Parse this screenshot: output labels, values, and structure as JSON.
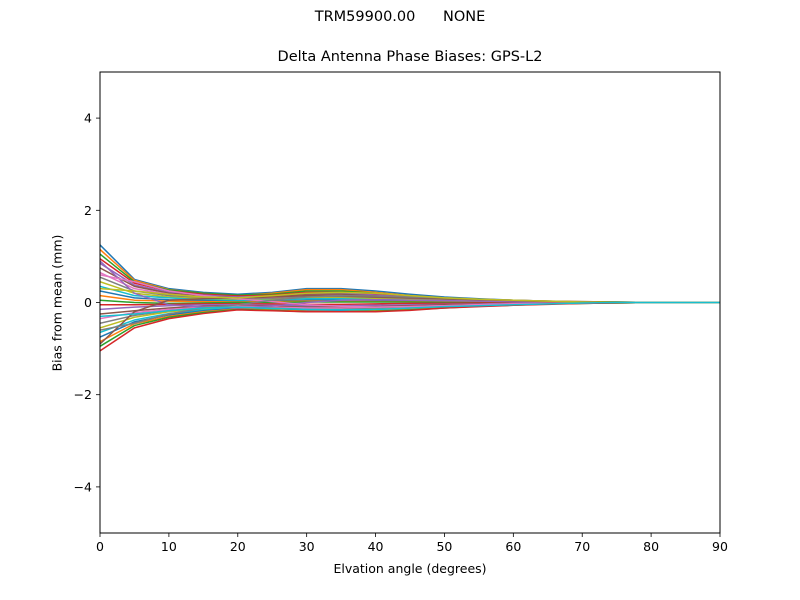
{
  "figure": {
    "suptitle": "TRM59900.00      NONE"
  },
  "chart_data": {
    "type": "line",
    "title": "Delta Antenna Phase Biases: GPS-L2",
    "xlabel": "Elvation angle (degrees)",
    "ylabel": "Bias from mean (mm)",
    "xlim": [
      0,
      90
    ],
    "ylim": [
      -5,
      5
    ],
    "xticks": [
      0,
      10,
      20,
      30,
      40,
      50,
      60,
      70,
      80,
      90
    ],
    "yticks": [
      -4,
      -2,
      0,
      2,
      4
    ],
    "ytick_labels": [
      "−4",
      "−2",
      "0",
      "2",
      "4"
    ],
    "grid": false,
    "legend": "none",
    "x": [
      0,
      5,
      10,
      15,
      20,
      25,
      30,
      35,
      40,
      45,
      50,
      55,
      60,
      65,
      70,
      75,
      80,
      85,
      90
    ],
    "series_colors": [
      "#1f77b4",
      "#ff7f0e",
      "#2ca02c",
      "#d62728",
      "#9467bd",
      "#8c564b",
      "#e377c2",
      "#7f7f7f",
      "#bcbd22",
      "#17becf"
    ],
    "series": [
      {
        "values": [
          1.25,
          0.5,
          0.3,
          0.22,
          0.18,
          0.22,
          0.3,
          0.3,
          0.25,
          0.18,
          0.12,
          0.08,
          0.05,
          0.03,
          0.02,
          0.01,
          0.0,
          0.0,
          0.0
        ]
      },
      {
        "values": [
          1.15,
          0.48,
          0.28,
          0.2,
          0.15,
          0.2,
          0.28,
          0.28,
          0.22,
          0.15,
          0.1,
          0.07,
          0.05,
          0.03,
          0.02,
          0.01,
          0.0,
          0.0,
          0.0
        ]
      },
      {
        "values": [
          1.05,
          0.45,
          0.27,
          0.2,
          0.16,
          0.18,
          0.25,
          0.25,
          0.2,
          0.14,
          0.1,
          0.07,
          0.04,
          0.02,
          0.01,
          0.01,
          0.0,
          0.0,
          0.0
        ]
      },
      {
        "values": [
          0.95,
          0.42,
          0.25,
          0.18,
          0.14,
          0.16,
          0.22,
          0.22,
          0.18,
          0.13,
          0.09,
          0.06,
          0.04,
          0.02,
          0.01,
          0.0,
          0.0,
          0.0,
          0.0
        ]
      },
      {
        "values": [
          0.85,
          0.38,
          0.22,
          0.16,
          0.12,
          0.14,
          0.2,
          0.2,
          0.16,
          0.12,
          0.08,
          0.06,
          0.04,
          0.02,
          0.01,
          0.0,
          0.0,
          0.0,
          0.0
        ]
      },
      {
        "values": [
          0.75,
          0.35,
          0.2,
          0.14,
          0.1,
          0.12,
          0.17,
          0.18,
          0.14,
          0.1,
          0.07,
          0.05,
          0.03,
          0.02,
          0.01,
          0.0,
          0.0,
          0.0,
          0.0
        ]
      },
      {
        "values": [
          0.65,
          0.3,
          0.18,
          0.12,
          0.09,
          0.1,
          0.15,
          0.15,
          0.12,
          0.09,
          0.06,
          0.04,
          0.03,
          0.02,
          0.01,
          0.0,
          0.0,
          0.0,
          0.0
        ]
      },
      {
        "values": [
          0.55,
          0.25,
          0.15,
          0.1,
          0.07,
          0.08,
          0.12,
          0.12,
          0.1,
          0.07,
          0.05,
          0.04,
          0.02,
          0.01,
          0.01,
          0.0,
          0.0,
          0.0,
          0.0
        ]
      },
      {
        "values": [
          0.45,
          0.2,
          0.12,
          0.08,
          0.05,
          0.06,
          0.1,
          0.1,
          0.08,
          0.06,
          0.04,
          0.03,
          0.02,
          0.01,
          0.0,
          0.0,
          0.0,
          0.0,
          0.0
        ]
      },
      {
        "values": [
          0.35,
          0.15,
          0.1,
          0.06,
          0.04,
          0.05,
          0.08,
          0.08,
          0.06,
          0.05,
          0.03,
          0.02,
          0.02,
          0.01,
          0.0,
          0.0,
          0.0,
          0.0,
          0.0
        ]
      },
      {
        "values": [
          0.25,
          0.1,
          0.06,
          0.04,
          0.02,
          0.03,
          0.05,
          0.05,
          0.04,
          0.03,
          0.02,
          0.02,
          0.01,
          0.01,
          0.0,
          0.0,
          0.0,
          0.0,
          0.0
        ]
      },
      {
        "values": [
          0.15,
          0.05,
          0.03,
          0.02,
          0.01,
          0.02,
          0.03,
          0.03,
          0.02,
          0.02,
          0.01,
          0.01,
          0.01,
          0.0,
          0.0,
          0.0,
          0.0,
          0.0,
          0.0
        ]
      },
      {
        "values": [
          0.05,
          0.0,
          -0.02,
          -0.01,
          0.0,
          0.0,
          0.01,
          0.01,
          0.01,
          0.01,
          0.0,
          0.0,
          0.0,
          0.0,
          0.0,
          0.0,
          0.0,
          0.0,
          0.0
        ]
      },
      {
        "values": [
          -0.05,
          -0.05,
          -0.04,
          -0.03,
          -0.03,
          -0.03,
          -0.04,
          -0.04,
          -0.03,
          -0.02,
          -0.02,
          -0.01,
          -0.01,
          0.0,
          0.0,
          0.0,
          0.0,
          0.0,
          0.0
        ]
      },
      {
        "values": [
          -0.15,
          -0.1,
          -0.07,
          -0.05,
          -0.05,
          -0.06,
          -0.07,
          -0.07,
          -0.06,
          -0.05,
          -0.04,
          -0.03,
          -0.02,
          -0.01,
          -0.01,
          0.0,
          0.0,
          0.0,
          0.0
        ]
      },
      {
        "values": [
          -0.25,
          -0.18,
          -0.12,
          -0.08,
          -0.07,
          -0.08,
          -0.1,
          -0.1,
          -0.09,
          -0.07,
          -0.05,
          -0.04,
          -0.03,
          -0.02,
          -0.01,
          0.0,
          0.0,
          0.0,
          0.0
        ]
      },
      {
        "values": [
          -0.35,
          -0.22,
          -0.15,
          -0.1,
          -0.08,
          -0.1,
          -0.12,
          -0.12,
          -0.11,
          -0.09,
          -0.07,
          -0.05,
          -0.03,
          -0.02,
          -0.01,
          0.0,
          0.0,
          0.0,
          0.0
        ]
      },
      {
        "values": [
          -0.45,
          -0.28,
          -0.18,
          -0.12,
          -0.1,
          -0.12,
          -0.15,
          -0.15,
          -0.13,
          -0.11,
          -0.08,
          -0.06,
          -0.04,
          -0.02,
          -0.01,
          0.0,
          0.0,
          0.0,
          0.0
        ]
      },
      {
        "values": [
          -0.55,
          -0.32,
          -0.2,
          -0.14,
          -0.11,
          -0.13,
          -0.16,
          -0.17,
          -0.15,
          -0.12,
          -0.09,
          -0.06,
          -0.04,
          -0.02,
          -0.01,
          0.0,
          0.0,
          0.0,
          0.0
        ]
      },
      {
        "values": [
          -0.65,
          -0.38,
          -0.24,
          -0.16,
          -0.12,
          -0.14,
          -0.17,
          -0.18,
          -0.16,
          -0.13,
          -0.1,
          -0.07,
          -0.05,
          -0.03,
          -0.01,
          0.0,
          0.0,
          0.0,
          0.0
        ]
      },
      {
        "values": [
          -0.75,
          -0.42,
          -0.27,
          -0.18,
          -0.13,
          -0.15,
          -0.18,
          -0.19,
          -0.17,
          -0.14,
          -0.1,
          -0.07,
          -0.05,
          -0.03,
          -0.02,
          -0.01,
          0.0,
          0.0,
          0.0
        ]
      },
      {
        "values": [
          -0.85,
          -0.46,
          -0.3,
          -0.2,
          -0.14,
          -0.16,
          -0.19,
          -0.2,
          -0.18,
          -0.15,
          -0.11,
          -0.08,
          -0.05,
          -0.03,
          -0.02,
          -0.01,
          0.0,
          0.0,
          0.0
        ]
      },
      {
        "values": [
          -0.95,
          -0.5,
          -0.32,
          -0.22,
          -0.15,
          -0.17,
          -0.2,
          -0.2,
          -0.19,
          -0.16,
          -0.12,
          -0.08,
          -0.06,
          -0.03,
          -0.02,
          -0.01,
          0.0,
          0.0,
          0.0
        ]
      },
      {
        "values": [
          -1.05,
          -0.55,
          -0.35,
          -0.24,
          -0.16,
          -0.18,
          -0.2,
          -0.2,
          -0.2,
          -0.17,
          -0.12,
          -0.09,
          -0.06,
          -0.04,
          -0.02,
          -0.01,
          0.0,
          0.0,
          0.0
        ]
      },
      {
        "values": [
          0.9,
          0.2,
          -0.05,
          -0.1,
          -0.12,
          -0.08,
          0.0,
          0.05,
          0.06,
          0.05,
          0.04,
          0.03,
          0.02,
          0.01,
          0.0,
          0.0,
          0.0,
          0.0,
          0.0
        ]
      },
      {
        "values": [
          -0.9,
          -0.2,
          0.05,
          0.08,
          0.1,
          0.12,
          0.15,
          0.14,
          0.12,
          0.1,
          0.08,
          0.06,
          0.04,
          0.02,
          0.01,
          0.0,
          0.0,
          0.0,
          0.0
        ]
      },
      {
        "values": [
          0.6,
          0.45,
          0.25,
          0.15,
          0.08,
          0.02,
          -0.05,
          -0.08,
          -0.1,
          -0.09,
          -0.07,
          -0.05,
          -0.03,
          -0.02,
          -0.01,
          0.0,
          0.0,
          0.0,
          0.0
        ]
      },
      {
        "values": [
          -0.6,
          -0.45,
          -0.25,
          -0.12,
          -0.05,
          0.05,
          0.12,
          0.15,
          0.14,
          0.12,
          0.1,
          0.07,
          0.05,
          0.03,
          0.01,
          0.0,
          0.0,
          0.0,
          0.0
        ]
      },
      {
        "values": [
          0.3,
          0.25,
          0.18,
          0.12,
          0.1,
          0.15,
          0.2,
          0.22,
          0.2,
          0.15,
          0.1,
          0.07,
          0.05,
          0.03,
          0.01,
          0.0,
          0.0,
          0.0,
          0.0
        ]
      },
      {
        "values": [
          -0.3,
          -0.25,
          -0.18,
          -0.12,
          -0.1,
          -0.13,
          -0.15,
          -0.16,
          -0.15,
          -0.12,
          -0.09,
          -0.07,
          -0.05,
          -0.03,
          -0.01,
          0.0,
          0.0,
          0.0,
          0.0
        ]
      }
    ]
  }
}
